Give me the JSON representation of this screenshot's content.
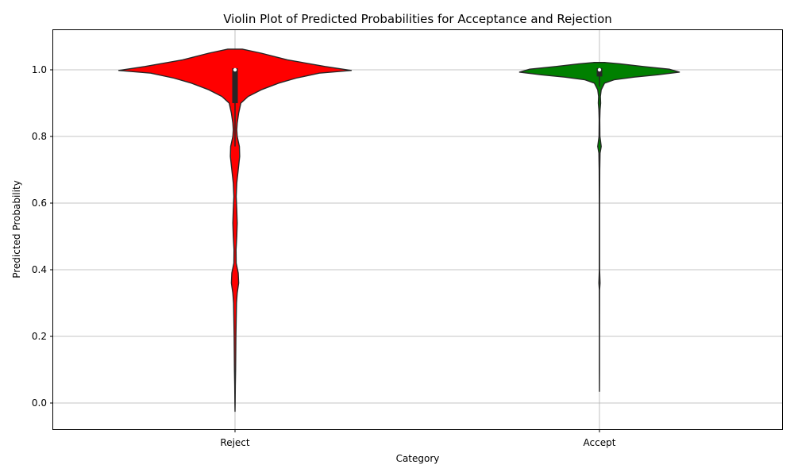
{
  "chart_data": {
    "type": "violin",
    "title": "Violin Plot of Predicted Probabilities for Acceptance and Rejection",
    "xlabel": "Category",
    "ylabel": "Predicted Probability",
    "ylim": [
      -0.08,
      1.12
    ],
    "yticks": [
      "0.0",
      "0.2",
      "0.4",
      "0.6",
      "0.8",
      "1.0"
    ],
    "grid": true,
    "categories": [
      "Reject",
      "Accept"
    ],
    "series": [
      {
        "category": "Reject",
        "color": "#ff0000",
        "quartiles": {
          "q1": 0.9,
          "median": 1.0,
          "q3": 1.0
        },
        "whiskers": [
          0.77,
          1.0
        ],
        "density_profile": [
          [
            1.062,
            0.05
          ],
          [
            1.05,
            0.18
          ],
          [
            1.03,
            0.36
          ],
          [
            1.01,
            0.62
          ],
          [
            0.998,
            0.8
          ],
          [
            0.99,
            0.58
          ],
          [
            0.975,
            0.42
          ],
          [
            0.96,
            0.3
          ],
          [
            0.94,
            0.18
          ],
          [
            0.92,
            0.09
          ],
          [
            0.9,
            0.04
          ],
          [
            0.87,
            0.025
          ],
          [
            0.84,
            0.015
          ],
          [
            0.82,
            0.012
          ],
          [
            0.8,
            0.015
          ],
          [
            0.77,
            0.03
          ],
          [
            0.74,
            0.032
          ],
          [
            0.7,
            0.022
          ],
          [
            0.66,
            0.012
          ],
          [
            0.62,
            0.008
          ],
          [
            0.58,
            0.012
          ],
          [
            0.54,
            0.015
          ],
          [
            0.5,
            0.012
          ],
          [
            0.46,
            0.007
          ],
          [
            0.42,
            0.008
          ],
          [
            0.39,
            0.022
          ],
          [
            0.36,
            0.025
          ],
          [
            0.33,
            0.015
          ],
          [
            0.3,
            0.01
          ],
          [
            0.25,
            0.008
          ],
          [
            0.2,
            0.006
          ],
          [
            0.15,
            0.005
          ],
          [
            0.1,
            0.004
          ],
          [
            0.05,
            0.002
          ],
          [
            0.0,
            0.001
          ],
          [
            -0.025,
            0.0
          ]
        ]
      },
      {
        "category": "Accept",
        "color": "#008000",
        "quartiles": {
          "q1": 0.98,
          "median": 1.0,
          "q3": 1.0
        },
        "whiskers": [
          0.95,
          1.0
        ],
        "density_profile": [
          [
            1.022,
            0.04
          ],
          [
            1.018,
            0.14
          ],
          [
            1.01,
            0.3
          ],
          [
            1.002,
            0.48
          ],
          [
            0.993,
            0.55
          ],
          [
            0.985,
            0.4
          ],
          [
            0.978,
            0.24
          ],
          [
            0.97,
            0.1
          ],
          [
            0.96,
            0.035
          ],
          [
            0.94,
            0.012
          ],
          [
            0.92,
            0.006
          ],
          [
            0.9,
            0.008
          ],
          [
            0.88,
            0.004
          ],
          [
            0.85,
            0.002
          ],
          [
            0.8,
            0.003
          ],
          [
            0.77,
            0.012
          ],
          [
            0.75,
            0.004
          ],
          [
            0.7,
            0.002
          ],
          [
            0.6,
            0.001
          ],
          [
            0.5,
            0.001
          ],
          [
            0.4,
            0.001
          ],
          [
            0.36,
            0.004
          ],
          [
            0.34,
            0.001
          ],
          [
            0.2,
            0.0005
          ],
          [
            0.1,
            0.0005
          ],
          [
            0.035,
            0.0
          ]
        ]
      }
    ]
  }
}
